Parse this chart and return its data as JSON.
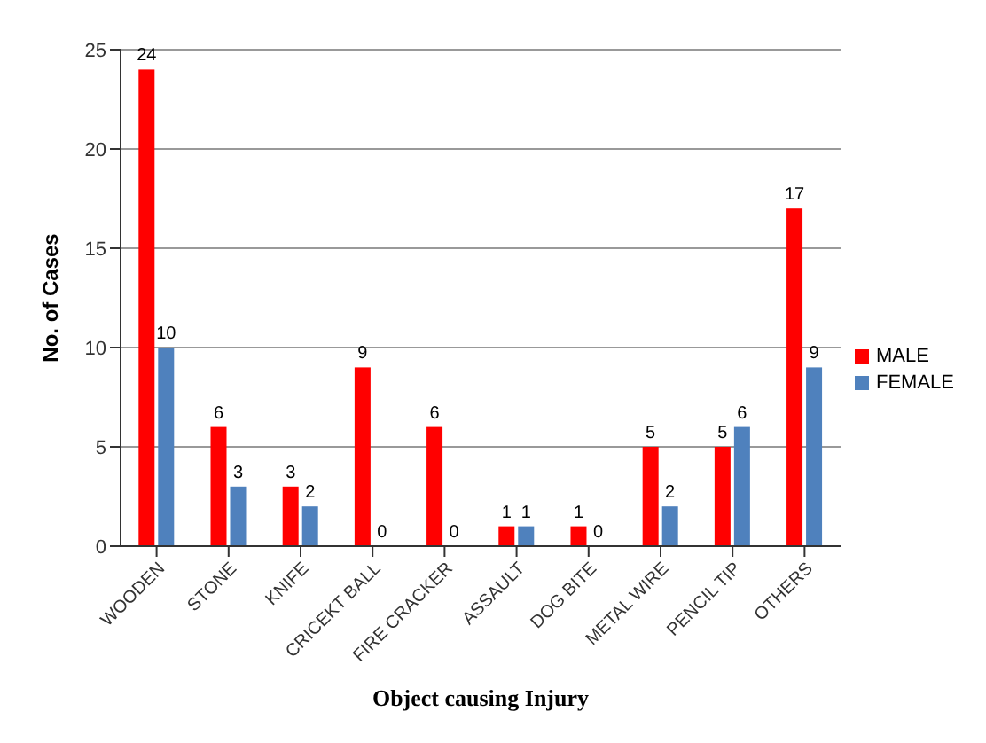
{
  "chart_data": {
    "type": "bar",
    "xlabel": "Object causing Injury",
    "ylabel": "No. of Cases",
    "categories": [
      "WOODEN",
      "STONE",
      "KNIFE",
      "CRICEKT BALL",
      "FIRE CRACKER",
      "ASSAULT",
      "DOG BITE",
      "METAL WIRE",
      "PENCIL TIP",
      "OTHERS"
    ],
    "series": [
      {
        "name": "MALE",
        "color": "#ff0000",
        "values": [
          24,
          6,
          3,
          9,
          6,
          1,
          1,
          5,
          5,
          17
        ]
      },
      {
        "name": "FEMALE",
        "color": "#4f81bd",
        "values": [
          10,
          3,
          2,
          0,
          0,
          1,
          0,
          2,
          6,
          9
        ]
      }
    ],
    "ylim": [
      0,
      25
    ],
    "yticks": [
      0,
      5,
      10,
      15,
      20,
      25
    ],
    "grid": "y",
    "legend": "right",
    "data_labels": true
  }
}
